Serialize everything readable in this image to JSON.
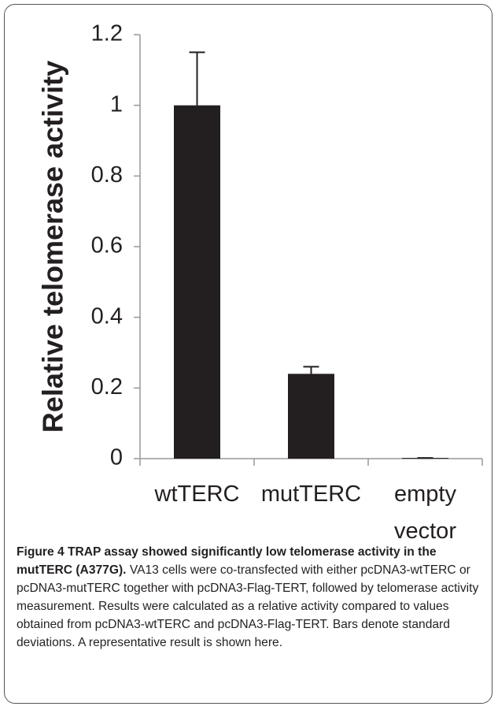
{
  "chart_data": {
    "type": "bar",
    "ylabel": "Relative telomerase activity",
    "categories": [
      "wtTERC",
      "mutTERC",
      "empty vector"
    ],
    "values": [
      1,
      0.24,
      0.002
    ],
    "errors": [
      0.15,
      0.02,
      0
    ],
    "color": "#231f20",
    "ylim": [
      0,
      1.2
    ],
    "yticks": [
      0,
      0.2,
      0.4,
      0.6,
      0.8,
      1,
      1.2
    ],
    "grid": false
  },
  "caption": {
    "label": "Figure 4 TRAP assay showed significantly low telomerase activity in the mutTERC (A377G).",
    "text": "VA13 cells were co-transfected with either pcDNA3-wtTERC or pcDNA3-mutTERC together with pcDNA3-Flag-TERT, followed by telomerase activity measurement. Results were calculated as a relative activity compared to values obtained from pcDNA3-wtTERC and pcDNA3-Flag-TERT. Bars denote standard deviations. A representative result is shown here."
  }
}
